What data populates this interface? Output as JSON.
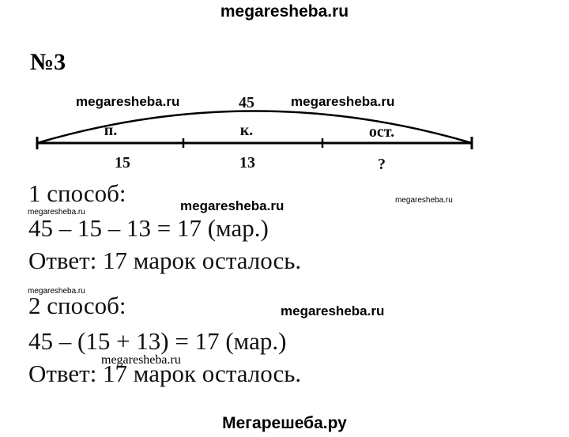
{
  "header": {
    "site": "megaresheba.ru"
  },
  "problem": {
    "number": "№3"
  },
  "diagram": {
    "total": "45",
    "segments": [
      {
        "label": "п.",
        "value": "15"
      },
      {
        "label": "к.",
        "value": "13"
      },
      {
        "label": "ост.",
        "value": "?"
      }
    ]
  },
  "methods": [
    {
      "title": "1 способ:",
      "expression": "45 – 15 – 13 = 17 (мар.)",
      "answer": "Ответ: 17 марок осталось."
    },
    {
      "title": "2 способ:",
      "expression": "45 – (15 + 13) = 17 (мар.)",
      "answer": "Ответ: 17 марок осталось."
    }
  ],
  "watermarks": [
    "megaresheba.ru",
    "megaresheba.ru",
    "megaresheba.ru",
    "megaresheba.ru",
    "megaresheba.ru",
    "megaresheba.ru",
    "megaresheba.ru",
    "megaresheba.ru"
  ],
  "footer": {
    "site": "Мегарешеба.ру"
  }
}
